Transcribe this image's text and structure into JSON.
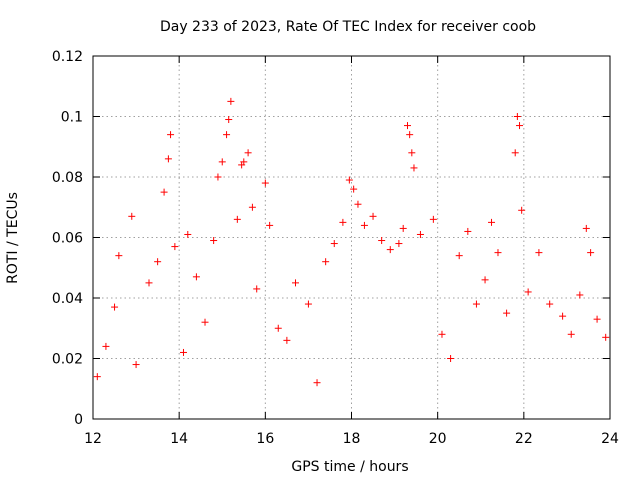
{
  "chart_data": {
    "type": "scatter",
    "title": "Day 233 of 2023, Rate Of TEC Index for receiver coob",
    "xlabel": "GPS time / hours",
    "ylabel": "ROTI / TECUs",
    "xlim": [
      12,
      24
    ],
    "ylim": [
      0,
      0.12
    ],
    "xticks": [
      12,
      14,
      16,
      18,
      20,
      22,
      24
    ],
    "yticks": [
      0,
      0.02,
      0.04,
      0.06,
      0.08,
      0.1,
      0.12
    ],
    "xtick_labels": [
      "12",
      "14",
      "16",
      "18",
      "20",
      "22",
      "24"
    ],
    "ytick_labels": [
      "0",
      "0.02",
      "0.04",
      "0.06",
      "0.08",
      "0.1",
      "0.12"
    ],
    "grid": true,
    "marker": "+",
    "color": "#ff0000",
    "series": [
      {
        "name": "ROTI",
        "points": [
          [
            12.1,
            0.014
          ],
          [
            12.3,
            0.024
          ],
          [
            12.5,
            0.037
          ],
          [
            12.6,
            0.054
          ],
          [
            12.9,
            0.067
          ],
          [
            13.0,
            0.018
          ],
          [
            13.3,
            0.045
          ],
          [
            13.5,
            0.052
          ],
          [
            13.65,
            0.075
          ],
          [
            13.75,
            0.086
          ],
          [
            13.8,
            0.094
          ],
          [
            13.9,
            0.057
          ],
          [
            14.1,
            0.022
          ],
          [
            14.2,
            0.061
          ],
          [
            14.4,
            0.047
          ],
          [
            14.6,
            0.032
          ],
          [
            14.8,
            0.059
          ],
          [
            14.9,
            0.08
          ],
          [
            15.0,
            0.085
          ],
          [
            15.1,
            0.094
          ],
          [
            15.15,
            0.099
          ],
          [
            15.2,
            0.105
          ],
          [
            15.35,
            0.066
          ],
          [
            15.45,
            0.084
          ],
          [
            15.5,
            0.085
          ],
          [
            15.6,
            0.088
          ],
          [
            15.7,
            0.07
          ],
          [
            15.8,
            0.043
          ],
          [
            16.0,
            0.078
          ],
          [
            16.1,
            0.064
          ],
          [
            16.3,
            0.03
          ],
          [
            16.5,
            0.026
          ],
          [
            16.7,
            0.045
          ],
          [
            17.0,
            0.038
          ],
          [
            17.2,
            0.012
          ],
          [
            17.4,
            0.052
          ],
          [
            17.6,
            0.058
          ],
          [
            17.8,
            0.065
          ],
          [
            17.95,
            0.079
          ],
          [
            18.05,
            0.076
          ],
          [
            18.15,
            0.071
          ],
          [
            18.3,
            0.064
          ],
          [
            18.5,
            0.067
          ],
          [
            18.7,
            0.059
          ],
          [
            18.9,
            0.056
          ],
          [
            19.1,
            0.058
          ],
          [
            19.2,
            0.063
          ],
          [
            19.3,
            0.097
          ],
          [
            19.35,
            0.094
          ],
          [
            19.4,
            0.088
          ],
          [
            19.45,
            0.083
          ],
          [
            19.6,
            0.061
          ],
          [
            19.9,
            0.066
          ],
          [
            20.1,
            0.028
          ],
          [
            20.3,
            0.02
          ],
          [
            20.5,
            0.054
          ],
          [
            20.7,
            0.062
          ],
          [
            20.9,
            0.038
          ],
          [
            21.1,
            0.046
          ],
          [
            21.25,
            0.065
          ],
          [
            21.4,
            0.055
          ],
          [
            21.6,
            0.035
          ],
          [
            21.8,
            0.088
          ],
          [
            21.85,
            0.1
          ],
          [
            21.9,
            0.097
          ],
          [
            21.95,
            0.069
          ],
          [
            22.1,
            0.042
          ],
          [
            22.35,
            0.055
          ],
          [
            22.6,
            0.038
          ],
          [
            22.9,
            0.034
          ],
          [
            23.1,
            0.028
          ],
          [
            23.3,
            0.041
          ],
          [
            23.45,
            0.063
          ],
          [
            23.55,
            0.055
          ],
          [
            23.7,
            0.033
          ],
          [
            23.9,
            0.027
          ]
        ]
      }
    ]
  }
}
